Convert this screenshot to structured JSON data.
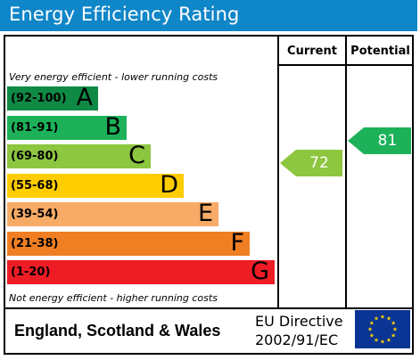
{
  "title": "Energy Efficiency Rating",
  "columns": {
    "current": "Current",
    "potential": "Potential"
  },
  "notes": {
    "top": "Very energy efficient - lower running costs",
    "bottom": "Not energy efficient - higher running costs"
  },
  "footer": {
    "region": "England, Scotland & Wales",
    "directive_line1": "EU Directive",
    "directive_line2": "2002/91/EC"
  },
  "eu_flag": {
    "icon": "eu-flag-icon",
    "background": "#0a3595",
    "stars": "#ffd200"
  },
  "chart_data": {
    "type": "bar",
    "categories": [
      "A",
      "B",
      "C",
      "D",
      "E",
      "F",
      "G"
    ],
    "bands": [
      {
        "letter": "A",
        "range": "(92-100)",
        "min": 92,
        "max": 100,
        "color": "#0f8a45"
      },
      {
        "letter": "B",
        "range": "(81-91)",
        "min": 81,
        "max": 91,
        "color": "#1db25a"
      },
      {
        "letter": "C",
        "range": "(69-80)",
        "min": 69,
        "max": 80,
        "color": "#8dc63f"
      },
      {
        "letter": "D",
        "range": "(55-68)",
        "min": 55,
        "max": 68,
        "color": "#ffcc00"
      },
      {
        "letter": "E",
        "range": "(39-54)",
        "min": 39,
        "max": 54,
        "color": "#f7ab66"
      },
      {
        "letter": "F",
        "range": "(21-38)",
        "min": 21,
        "max": 38,
        "color": "#f07f23"
      },
      {
        "letter": "G",
        "range": "(1-20)",
        "min": 1,
        "max": 20,
        "color": "#ee1c25"
      }
    ],
    "series": [
      {
        "name": "Current",
        "value": 72,
        "band": "C",
        "color": "#8dc63f"
      },
      {
        "name": "Potential",
        "value": 81,
        "band": "B",
        "color": "#1db25a"
      }
    ]
  }
}
